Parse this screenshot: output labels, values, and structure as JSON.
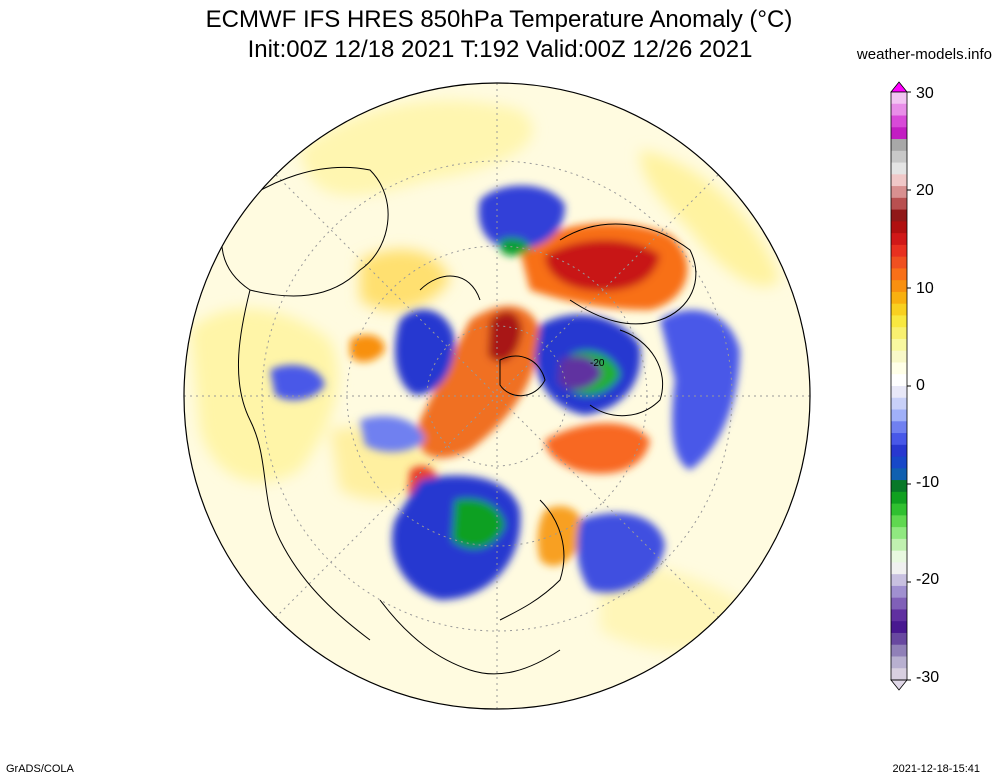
{
  "header": {
    "title_line1": "ECMWF IFS HRES 850hPa Temperature Anomaly (°C)",
    "title_line2": "Init:00Z 12/18 2021 T:192 Valid:00Z 12/26 2021",
    "credit": "weather-models.info"
  },
  "footer": {
    "left": "GrADS/COLA",
    "right": "2021-12-18-15:41"
  },
  "map": {
    "projection": "polar stereographic",
    "variable": "850hPa temperature anomaly",
    "units": "°C",
    "contour_label": "-20"
  },
  "colorbar": {
    "min": -30,
    "max": 30,
    "tick_labels": [
      "30",
      "20",
      "10",
      "0",
      "-10",
      "-20",
      "-30"
    ],
    "colors": [
      "#f2c4f2",
      "#e88ee8",
      "#d84ad8",
      "#c21ec2",
      "#a8a8a8",
      "#c8c8c8",
      "#e4e4e4",
      "#f0c8c8",
      "#d89090",
      "#b85050",
      "#901818",
      "#b01010",
      "#d01818",
      "#e83020",
      "#f05020",
      "#f87018",
      "#f89010",
      "#f8b010",
      "#f8d020",
      "#f8e840",
      "#f8f070",
      "#f8f8a0",
      "#f8f8c8",
      "#ffffe8",
      "#ffffff",
      "#e8e8f8",
      "#c8d0f8",
      "#a0b0f8",
      "#7080f0",
      "#4858e8",
      "#2838d0",
      "#1848c8",
      "#1060b0",
      "#087828",
      "#10a020",
      "#30c030",
      "#60d850",
      "#90e880",
      "#c0f0b0",
      "#e8f8e0",
      "#f0f0f0",
      "#c8c0e0",
      "#a090d0",
      "#8060b8",
      "#6030a0",
      "#481890",
      "#6848a0",
      "#9080b8",
      "#b8b0d0",
      "#d8d0e0"
    ]
  }
}
